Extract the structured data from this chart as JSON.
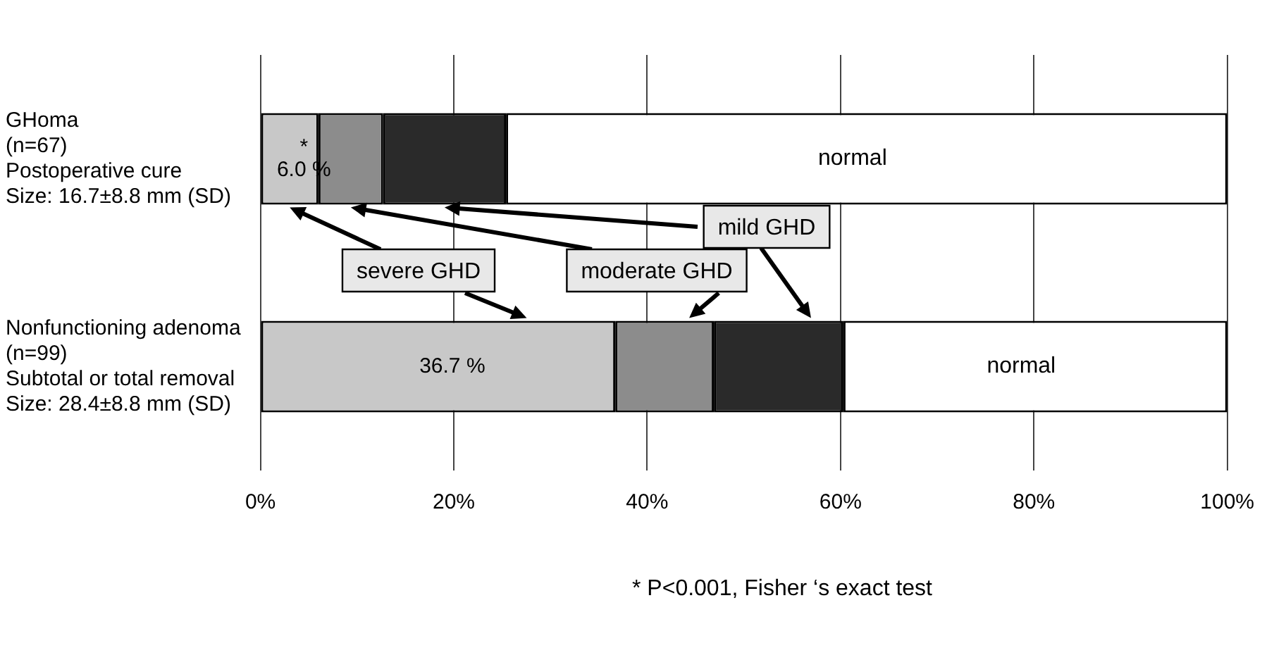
{
  "chart_data": {
    "type": "bar",
    "orientation": "horizontal",
    "stacked": true,
    "categories": [
      "GHoma\n(n=67)\nPostoperative cure\nSize: 16.7±8.8 mm (SD)",
      "Nonfunctioning adenoma\n(n=99)\nSubtotal or total removal\nSize: 28.4±8.8 mm (SD)"
    ],
    "series": [
      {
        "name": "severe GHD",
        "color": "#c8c8c8",
        "values": [
          6.0,
          36.7
        ],
        "value_labels": [
          "*\n6.0 %",
          "36.7 %"
        ]
      },
      {
        "name": "moderate GHD",
        "color": "#8c8c8c",
        "values": [
          6.7,
          10.2
        ]
      },
      {
        "name": "mild GHD",
        "color": "#2a2a2a",
        "values": [
          12.7,
          13.4
        ]
      },
      {
        "name": "normal",
        "color": "#ffffff",
        "values": [
          74.6,
          39.7
        ]
      }
    ],
    "xlim": [
      0,
      100
    ],
    "xticks": [
      {
        "value": 0,
        "label": "0%"
      },
      {
        "value": 20,
        "label": "20%"
      },
      {
        "value": 40,
        "label": "40%"
      },
      {
        "value": 60,
        "label": "60%"
      },
      {
        "value": 80,
        "label": "80%"
      },
      {
        "value": 100,
        "label": "100%"
      }
    ],
    "grid": "x",
    "legend": false,
    "annotations": [
      "* P<0.001, Fisher ‘s exact test"
    ]
  }
}
